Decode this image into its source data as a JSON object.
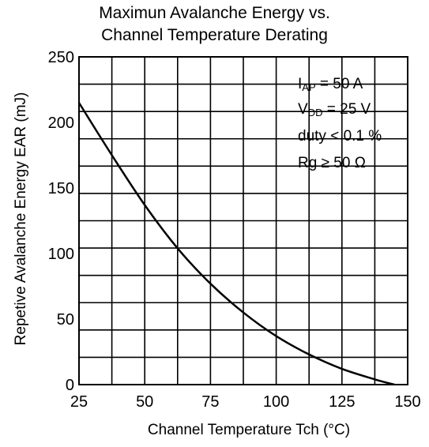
{
  "chart_data": {
    "type": "line",
    "title_line1": "Maximun Avalanche Energy vs.",
    "title_line2": "Channel Temperature Derating",
    "xlabel": "Channel Temperature   Tch  (°C)",
    "ylabel": "Repetive Avalanche Energy   EAR  (mJ)",
    "xlim": [
      25,
      150
    ],
    "ylim": [
      0,
      250
    ],
    "x_ticks": [
      "25",
      "50",
      "75",
      "100",
      "125",
      "150"
    ],
    "y_ticks": [
      "0",
      "50",
      "100",
      "150",
      "200",
      "250"
    ],
    "grid": true,
    "series": [
      {
        "x": [
          25,
          37.5,
          50,
          62.5,
          75,
          87.5,
          100,
          112.5,
          125,
          137.5,
          145
        ],
        "y": [
          215,
          175,
          137,
          104,
          77,
          55,
          37,
          23,
          12,
          4,
          0
        ],
        "color": "#000000"
      }
    ],
    "conditions": {
      "iap_main": "I",
      "iap_sub": "AP",
      "iap_rest": " = 50  A",
      "vdd_main": "V",
      "vdd_sub": "DD",
      "vdd_rest": " = 25 V",
      "duty": "duty < 0.1 %",
      "rg_main": "Rg ",
      "rg_ge": "≥",
      "rg_rest": " 50  Ω"
    }
  }
}
